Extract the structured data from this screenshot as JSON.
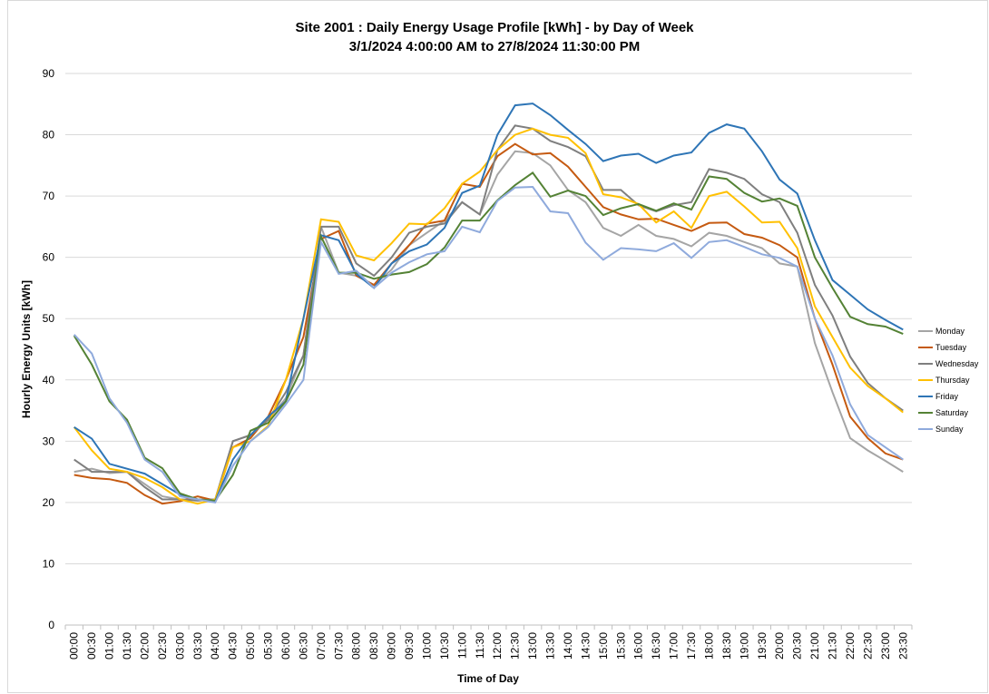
{
  "chart_data": {
    "type": "line",
    "title": "Site 2001 : Daily Energy Usage Profile [kWh] - by Day of Week",
    "subtitle": "3/1/2024 4:00:00 AM to 27/8/2024 11:30:00 PM",
    "x_label": "Time of Day",
    "y_label": "Hourly Energy Units [kWh]",
    "categories": [
      "00:00",
      "00:30",
      "01:00",
      "01:30",
      "02:00",
      "02:30",
      "03:00",
      "03:30",
      "04:00",
      "04:30",
      "05:00",
      "05:30",
      "06:00",
      "06:30",
      "07:00",
      "07:30",
      "08:00",
      "08:30",
      "09:00",
      "09:30",
      "10:00",
      "10:30",
      "11:00",
      "11:30",
      "12:00",
      "12:30",
      "13:00",
      "13:30",
      "14:00",
      "14:30",
      "15:00",
      "15:30",
      "16:00",
      "16:30",
      "17:00",
      "17:30",
      "18:00",
      "18:30",
      "19:00",
      "19:30",
      "20:00",
      "20:30",
      "21:00",
      "21:30",
      "22:00",
      "22:30",
      "23:00",
      "23:30"
    ],
    "ylim": [
      0,
      90
    ],
    "yticks": [
      0,
      10,
      20,
      30,
      40,
      50,
      60,
      70,
      80,
      90
    ],
    "grid": true,
    "legend": "right",
    "series": [
      {
        "name": "Monday",
        "color": "#a5a5a5",
        "values": [
          25,
          25.5,
          24.8,
          25,
          23,
          21,
          20.5,
          20.5,
          20.5,
          30,
          31,
          33.5,
          37,
          44,
          65,
          57.5,
          57,
          55.5,
          58,
          62,
          64,
          66,
          69,
          67,
          73.5,
          77.3,
          77,
          75,
          71,
          69,
          64.8,
          63.5,
          65.3,
          63.5,
          63,
          61.8,
          64,
          63.5,
          62.5,
          61.5,
          59,
          58.5,
          46,
          38,
          30.5,
          28.5,
          26.8,
          25
        ]
      },
      {
        "name": "Tuesday",
        "color": "#c55a11",
        "values": [
          24.5,
          24,
          23.8,
          23.2,
          21.2,
          19.8,
          20.2,
          21,
          20.3,
          29,
          30.5,
          34,
          40,
          47,
          63,
          64.3,
          57,
          55.5,
          59,
          62,
          65.5,
          66,
          72,
          71.5,
          76.5,
          78.5,
          76.8,
          77,
          74.8,
          71.5,
          68.2,
          67,
          66.2,
          66.3,
          65.3,
          64.3,
          65.6,
          65.7,
          63.8,
          63.2,
          62,
          60,
          50,
          42.5,
          34,
          30.5,
          28,
          27
        ]
      },
      {
        "name": "Wednesday",
        "color": "#7f7f7f",
        "values": [
          27,
          25,
          25,
          25,
          22.5,
          20.5,
          20.5,
          20.3,
          20.5,
          30,
          31,
          33.5,
          38,
          44,
          65,
          65,
          59,
          57,
          60,
          64,
          65,
          65.5,
          69,
          67,
          77.5,
          81.5,
          81,
          79,
          78,
          76.5,
          71,
          71,
          68.5,
          67.5,
          68.5,
          69,
          74.4,
          73.8,
          72.8,
          70.3,
          69,
          64,
          55.5,
          50.5,
          43.8,
          39.5,
          37,
          35
        ]
      },
      {
        "name": "Thursday",
        "color": "#ffc000",
        "values": [
          32.3,
          28.5,
          25.5,
          25,
          24,
          22.5,
          20.5,
          19.8,
          20.5,
          29,
          30,
          32.5,
          40,
          50,
          66.2,
          65.8,
          60.3,
          59.5,
          62.3,
          65.5,
          65.4,
          68,
          72,
          74,
          77.5,
          80,
          81,
          80,
          79.5,
          77,
          70.3,
          69.8,
          68.7,
          65.7,
          67.5,
          64.8,
          70,
          70.7,
          68.3,
          65.7,
          65.8,
          61.5,
          52,
          47,
          42,
          39,
          37,
          34.7
        ]
      },
      {
        "name": "Friday",
        "color": "#2e75b6",
        "values": [
          32.3,
          30.4,
          26.3,
          25.5,
          24.7,
          23,
          21.3,
          20.5,
          20.2,
          27,
          31,
          34,
          36.5,
          50,
          63.6,
          62.8,
          57.3,
          55,
          59,
          61,
          62.1,
          64.8,
          70.5,
          71.7,
          80,
          84.8,
          85.1,
          83.2,
          80.8,
          78.5,
          75.7,
          76.6,
          76.9,
          75.4,
          76.6,
          77.1,
          80.3,
          81.7,
          81,
          77.3,
          72.7,
          70.4,
          62.8,
          56.3,
          53.9,
          51.5,
          49.8,
          48.2
        ]
      },
      {
        "name": "Saturday",
        "color": "#548235",
        "values": [
          47.2,
          42.5,
          36.5,
          33.5,
          27.3,
          25.6,
          21.5,
          20.5,
          20.3,
          24.5,
          31.7,
          33,
          36.5,
          42.5,
          63.4,
          57.5,
          57.5,
          56.5,
          57.2,
          57.6,
          58.9,
          61.6,
          66,
          66,
          69.3,
          71.8,
          73.8,
          69.9,
          70.9,
          70,
          66.9,
          68,
          68.7,
          67.6,
          68.8,
          67.8,
          73.2,
          72.8,
          70.5,
          69.1,
          69.6,
          68.4,
          60,
          55,
          50.3,
          49.1,
          48.7,
          47.5
        ]
      },
      {
        "name": "Sunday",
        "color": "#8faadc",
        "values": [
          47.4,
          44.3,
          37,
          33,
          27,
          25,
          21,
          20.5,
          20,
          26,
          30,
          32.3,
          36,
          40,
          62.5,
          57.3,
          57.8,
          55,
          57.5,
          59.2,
          60.5,
          61,
          65,
          64.1,
          69.2,
          71.4,
          71.5,
          67.5,
          67.2,
          62.4,
          59.6,
          61.5,
          61.3,
          61,
          62.3,
          59.9,
          62.5,
          62.8,
          61.7,
          60.5,
          59.9,
          58.5,
          50,
          44,
          36,
          31,
          29,
          27
        ]
      }
    ]
  }
}
